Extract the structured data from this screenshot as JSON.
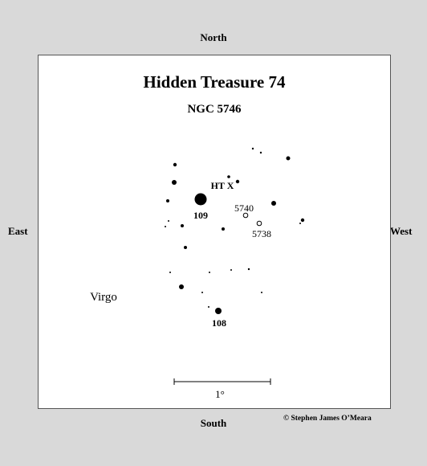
{
  "directions": {
    "north": "North",
    "south": "South",
    "east": "East",
    "west": "West"
  },
  "credit": "© Stephen James O’Meara",
  "chart": {
    "title": "Hidden Treasure 74",
    "subtitle": "NGC 5746",
    "constellation": "Virgo",
    "scale_label": "1°",
    "labels": {
      "target": "HT X",
      "star_109": "109",
      "star_108": "108",
      "galaxy_5740": "5740",
      "galaxy_5738": "5738"
    }
  }
}
